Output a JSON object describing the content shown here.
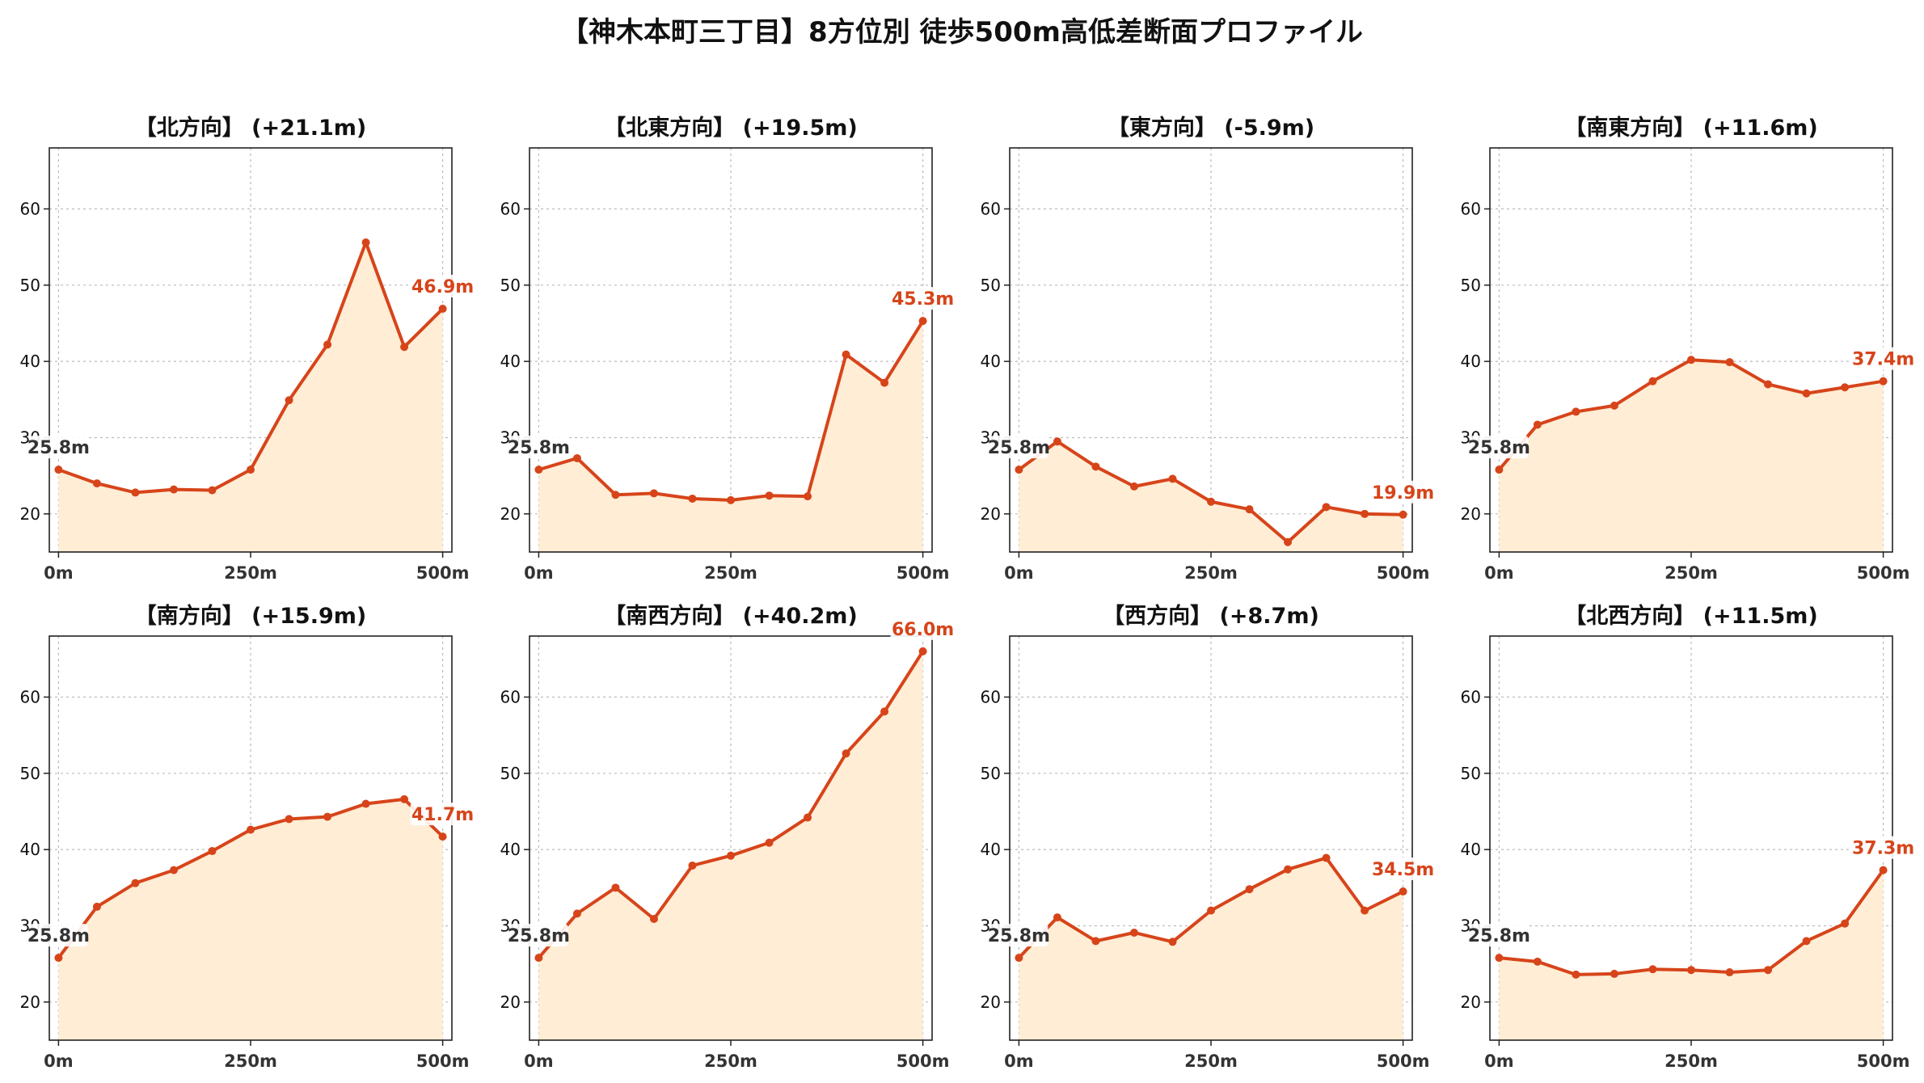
{
  "title": "【神木本町三丁目】8方位別 徒歩500m高低差断面プロファイル",
  "colors": {
    "line": "#d7441a",
    "fill": "#ffedd5",
    "start_label": "#333333",
    "end_label": "#d7441a",
    "grid": "#bbbbbb"
  },
  "chart_data": [
    {
      "type": "area",
      "title": "【北方向】 (+21.1m)",
      "x": [
        0,
        50,
        100,
        150,
        200,
        250,
        300,
        350,
        400,
        450,
        500
      ],
      "y": [
        25.8,
        24.0,
        22.8,
        23.2,
        23.1,
        25.8,
        34.9,
        42.2,
        55.6,
        41.9,
        46.9
      ],
      "xticks": [
        "0m",
        "250m",
        "500m"
      ],
      "yticks": [
        20,
        30,
        40,
        50,
        60
      ],
      "ylim": [
        15,
        68
      ],
      "xlim": [
        -12,
        512
      ],
      "start_label": "25.8m",
      "end_label": "46.9m",
      "grid": true
    },
    {
      "type": "area",
      "title": "【北東方向】 (+19.5m)",
      "x": [
        0,
        50,
        100,
        150,
        200,
        250,
        300,
        350,
        400,
        450,
        500
      ],
      "y": [
        25.8,
        27.3,
        22.5,
        22.7,
        22.0,
        21.8,
        22.4,
        22.3,
        40.9,
        37.2,
        45.3
      ],
      "xticks": [
        "0m",
        "250m",
        "500m"
      ],
      "yticks": [
        20,
        30,
        40,
        50,
        60
      ],
      "ylim": [
        15,
        68
      ],
      "xlim": [
        -12,
        512
      ],
      "start_label": "25.8m",
      "end_label": "45.3m",
      "grid": true
    },
    {
      "type": "area",
      "title": "【東方向】 (-5.9m)",
      "x": [
        0,
        50,
        100,
        150,
        200,
        250,
        300,
        350,
        400,
        450,
        500
      ],
      "y": [
        25.8,
        29.5,
        26.2,
        23.6,
        24.6,
        21.6,
        20.6,
        16.3,
        20.9,
        20.0,
        19.9
      ],
      "xticks": [
        "0m",
        "250m",
        "500m"
      ],
      "yticks": [
        20,
        30,
        40,
        50,
        60
      ],
      "ylim": [
        15,
        68
      ],
      "xlim": [
        -12,
        512
      ],
      "start_label": "25.8m",
      "end_label": "19.9m",
      "grid": true
    },
    {
      "type": "area",
      "title": "【南東方向】 (+11.6m)",
      "x": [
        0,
        50,
        100,
        150,
        200,
        250,
        300,
        350,
        400,
        450,
        500
      ],
      "y": [
        25.8,
        31.7,
        33.4,
        34.2,
        37.4,
        40.2,
        39.9,
        37.0,
        35.8,
        36.6,
        37.4
      ],
      "xticks": [
        "0m",
        "250m",
        "500m"
      ],
      "yticks": [
        20,
        30,
        40,
        50,
        60
      ],
      "ylim": [
        15,
        68
      ],
      "xlim": [
        -12,
        512
      ],
      "start_label": "25.8m",
      "end_label": "37.4m",
      "grid": true
    },
    {
      "type": "area",
      "title": "【南方向】 (+15.9m)",
      "x": [
        0,
        50,
        100,
        150,
        200,
        250,
        300,
        350,
        400,
        450,
        500
      ],
      "y": [
        25.8,
        32.5,
        35.6,
        37.3,
        39.8,
        42.6,
        44.0,
        44.3,
        46.0,
        46.6,
        41.7
      ],
      "xticks": [
        "0m",
        "250m",
        "500m"
      ],
      "yticks": [
        20,
        30,
        40,
        50,
        60
      ],
      "ylim": [
        15,
        68
      ],
      "xlim": [
        -12,
        512
      ],
      "start_label": "25.8m",
      "end_label": "41.7m",
      "grid": true
    },
    {
      "type": "area",
      "title": "【南西方向】 (+40.2m)",
      "x": [
        0,
        50,
        100,
        150,
        200,
        250,
        300,
        350,
        400,
        450,
        500
      ],
      "y": [
        25.8,
        31.6,
        35.0,
        30.9,
        37.9,
        39.2,
        40.9,
        44.2,
        52.6,
        58.1,
        66.0
      ],
      "xticks": [
        "0m",
        "250m",
        "500m"
      ],
      "yticks": [
        20,
        30,
        40,
        50,
        60
      ],
      "ylim": [
        15,
        68
      ],
      "xlim": [
        -12,
        512
      ],
      "start_label": "25.8m",
      "end_label": "66.0m",
      "grid": true
    },
    {
      "type": "area",
      "title": "【西方向】 (+8.7m)",
      "x": [
        0,
        50,
        100,
        150,
        200,
        250,
        300,
        350,
        400,
        450,
        500
      ],
      "y": [
        25.8,
        31.1,
        28.0,
        29.1,
        27.9,
        32.0,
        34.8,
        37.4,
        38.9,
        32.0,
        34.5
      ],
      "xticks": [
        "0m",
        "250m",
        "500m"
      ],
      "yticks": [
        20,
        30,
        40,
        50,
        60
      ],
      "ylim": [
        15,
        68
      ],
      "xlim": [
        -12,
        512
      ],
      "start_label": "25.8m",
      "end_label": "34.5m",
      "grid": true
    },
    {
      "type": "area",
      "title": "【北西方向】 (+11.5m)",
      "x": [
        0,
        50,
        100,
        150,
        200,
        250,
        300,
        350,
        400,
        450,
        500
      ],
      "y": [
        25.8,
        25.3,
        23.6,
        23.7,
        24.3,
        24.2,
        23.9,
        24.2,
        28.0,
        30.3,
        37.3
      ],
      "xticks": [
        "0m",
        "250m",
        "500m"
      ],
      "yticks": [
        20,
        30,
        40,
        50,
        60
      ],
      "ylim": [
        15,
        68
      ],
      "xlim": [
        -12,
        512
      ],
      "start_label": "25.8m",
      "end_label": "37.3m",
      "grid": true
    }
  ]
}
